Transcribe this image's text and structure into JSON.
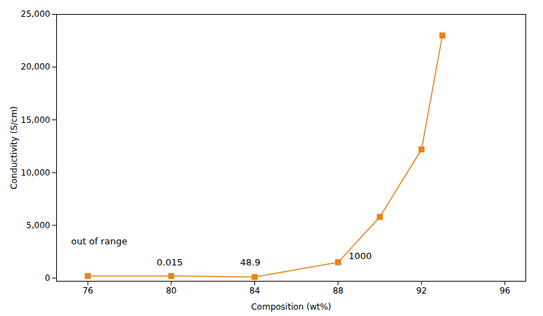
{
  "chart_data": {
    "type": "line",
    "xlabel": "Composition (wt%)",
    "ylabel": "Conductivity (S/cm)",
    "x": [
      76,
      80,
      84,
      88,
      90,
      92,
      93
    ],
    "values": [
      200,
      200,
      100,
      1500,
      5800,
      12200,
      23000
    ],
    "color": "#E8841A",
    "marker": "square",
    "line_style": "solid",
    "xlim": [
      74.5,
      97
    ],
    "ylim": [
      -300,
      25000
    ],
    "xticks": [
      76,
      80,
      84,
      88,
      92,
      96
    ],
    "yticks": [
      0,
      {
        "value": 5000,
        "label": "5,000"
      },
      {
        "value": 10000,
        "label": "10,000"
      },
      {
        "value": 15000,
        "label": "15,000"
      },
      {
        "value": 20000,
        "label": "20,000"
      },
      {
        "value": 25000,
        "label": "25,000"
      }
    ],
    "grid": false,
    "annotations": [
      {
        "text": "out of range",
        "x": 75.2,
        "y": 3200
      },
      {
        "text": "0.015",
        "x": 79.3,
        "y": 1200
      },
      {
        "text": "48.9",
        "x": 83.3,
        "y": 1200
      },
      {
        "text": "1000",
        "x": 88.5,
        "y": 1800
      }
    ]
  }
}
